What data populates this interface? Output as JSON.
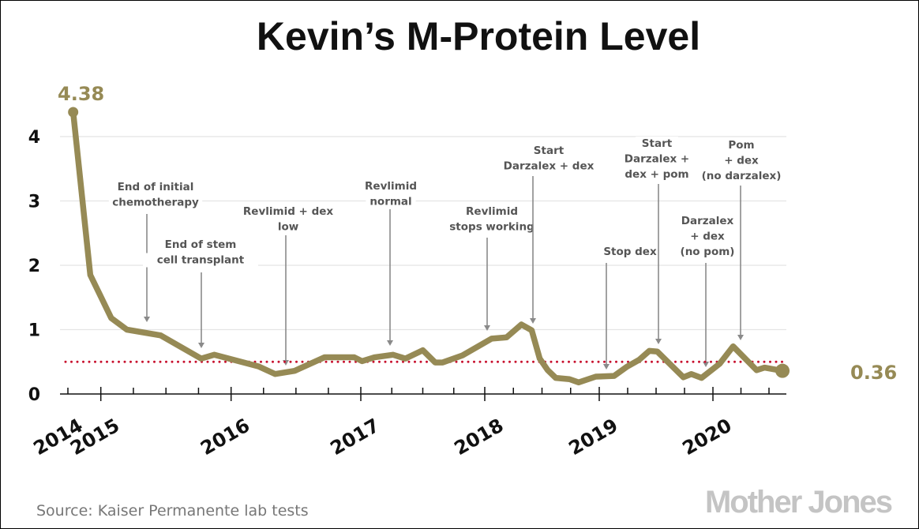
{
  "chart_data": {
    "type": "line",
    "title": "Kevin’s M-Protein Level",
    "xlabel": "",
    "ylabel": "",
    "ylim": [
      0,
      4.5
    ],
    "yticks": [
      "0",
      "1",
      "2",
      "3",
      "4"
    ],
    "xticks": [
      "2014",
      "2015",
      "2016",
      "2017",
      "2018",
      "2019",
      "2020"
    ],
    "grid": true,
    "series": [
      {
        "name": "M-Protein",
        "color": "#968a55",
        "x": [
          2014.79,
          2014.92,
          2015.08,
          2015.2,
          2015.46,
          2015.77,
          2015.87,
          2016.21,
          2016.34,
          2016.49,
          2016.72,
          2016.95,
          2017.01,
          2017.11,
          2017.26,
          2017.36,
          2017.5,
          2017.6,
          2017.66,
          2017.82,
          2018.06,
          2018.19,
          2018.32,
          2018.41,
          2018.48,
          2018.55,
          2018.62,
          2018.74,
          2018.82,
          2018.97,
          2019.13,
          2019.24,
          2019.35,
          2019.44,
          2019.51,
          2019.74,
          2019.81,
          2019.9,
          2020.06,
          2020.18,
          2020.39,
          2020.46,
          2020.62
        ],
        "y": [
          4.38,
          1.85,
          1.18,
          1.0,
          0.91,
          0.55,
          0.61,
          0.43,
          0.31,
          0.36,
          0.57,
          0.57,
          0.51,
          0.57,
          0.61,
          0.55,
          0.68,
          0.49,
          0.49,
          0.6,
          0.86,
          0.88,
          1.08,
          0.99,
          0.55,
          0.37,
          0.25,
          0.23,
          0.18,
          0.27,
          0.28,
          0.42,
          0.53,
          0.67,
          0.66,
          0.26,
          0.31,
          0.25,
          0.47,
          0.74,
          0.37,
          0.41,
          0.36
        ]
      }
    ],
    "reference_line": {
      "value": 0.5,
      "color": "#c8102e",
      "style": "dotted"
    },
    "start_label": "4.38",
    "end_label": "0.36",
    "annotations": [
      {
        "lines": [
          "End of initial",
          "chemotherapy"
        ]
      },
      {
        "lines": [
          "End of stem",
          "cell transplant"
        ]
      },
      {
        "lines": [
          "Revlimid + dex",
          "low"
        ]
      },
      {
        "lines": [
          "Revlimid",
          "normal"
        ]
      },
      {
        "lines": [
          "Revlimid",
          "stops working"
        ]
      },
      {
        "lines": [
          "Start",
          "Darzalex + dex"
        ]
      },
      {
        "lines": [
          "Stop dex"
        ]
      },
      {
        "lines": [
          "Start",
          "Darzalex +",
          "dex + pom"
        ]
      },
      {
        "lines": [
          "Darzalex",
          "+ dex",
          "(no pom)"
        ]
      },
      {
        "lines": [
          "Pom",
          "+ dex",
          "(no darzalex)"
        ]
      }
    ]
  },
  "source": "Source: Kaiser Permanente lab tests",
  "logo": "Mother Jones"
}
